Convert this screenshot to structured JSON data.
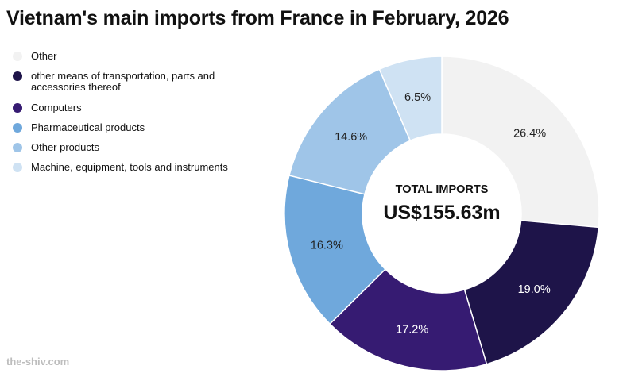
{
  "chart_data": {
    "type": "pie",
    "title": "Vietnam's main imports from France in February, 2026",
    "center_label": "TOTAL IMPORTS",
    "center_value": "US$155.63m",
    "categories": [
      "Other",
      "other means of transportation, parts and accessories thereof",
      "Computers",
      "Pharmaceutical products",
      "Other products",
      "Machine, equipment, tools and instruments"
    ],
    "values": [
      26.4,
      19.0,
      17.2,
      16.3,
      14.6,
      6.5
    ],
    "labels": [
      "26.4%",
      "19.0%",
      "17.2%",
      "16.3%",
      "14.6%",
      "6.5%"
    ],
    "colors": [
      "#f2f2f2",
      "#1e1449",
      "#361b72",
      "#6fa8dc",
      "#9fc5e8",
      "#cfe2f3"
    ],
    "label_colors": [
      "#222222",
      "#ffffff",
      "#ffffff",
      "#222222",
      "#222222",
      "#222222"
    ],
    "legend_position": "top-left"
  },
  "legend_line1": [
    "Other",
    "other means of transportation, parts and",
    "Computers",
    "Pharmaceutical products",
    "Other products",
    "Machine, equipment, tools and instruments"
  ],
  "legend_line2": [
    "",
    "accessories thereof",
    "",
    "",
    "",
    ""
  ],
  "watermark": "the-shiv.com"
}
